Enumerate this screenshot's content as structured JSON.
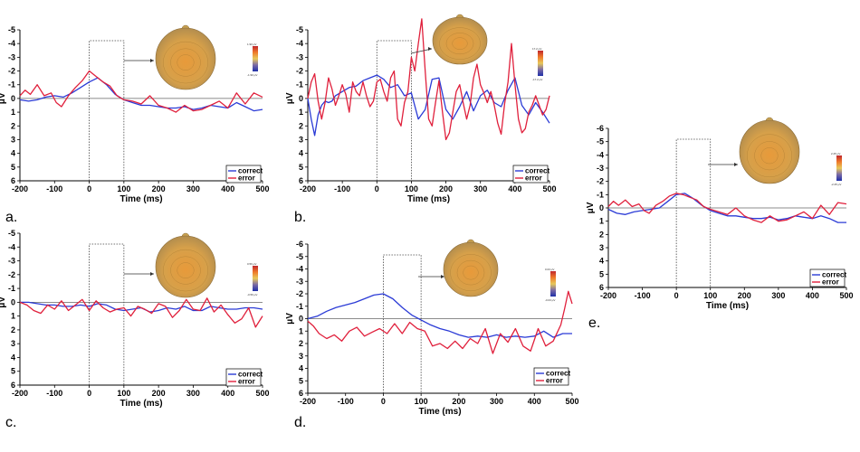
{
  "chart_data": [
    {
      "panel": "a.",
      "type": "line",
      "xlabel": "Time (ms)",
      "ylabel": "μV",
      "xlim": [
        -200,
        500
      ],
      "ylim": [
        -5,
        6
      ],
      "xticks": [
        -200,
        -100,
        0,
        100,
        200,
        300,
        400,
        500
      ],
      "yticks": [
        -5,
        -4,
        -3,
        -2,
        -1,
        0,
        1,
        2,
        3,
        4,
        5,
        6
      ],
      "legend": [
        "correct",
        "error"
      ],
      "colorbar": [
        "1.90 μV",
        "-1.90 μV"
      ],
      "series": [
        {
          "name": "correct",
          "color": "#2b3bd6",
          "x": [
            -200,
            -175,
            -150,
            -125,
            -100,
            -75,
            -50,
            -25,
            0,
            25,
            50,
            75,
            100,
            125,
            150,
            175,
            200,
            225,
            250,
            275,
            300,
            325,
            350,
            375,
            400,
            425,
            450,
            475,
            500
          ],
          "y": [
            0.1,
            0.2,
            0.1,
            -0.1,
            -0.2,
            -0.1,
            -0.4,
            -0.8,
            -1.2,
            -1.5,
            -1.0,
            -0.3,
            0.1,
            0.3,
            0.5,
            0.5,
            0.6,
            0.7,
            0.7,
            0.6,
            0.8,
            0.7,
            0.5,
            0.6,
            0.7,
            0.3,
            0.6,
            0.9,
            0.8
          ]
        },
        {
          "name": "error",
          "color": "#e0203c",
          "x": [
            -200,
            -185,
            -170,
            -150,
            -130,
            -110,
            -95,
            -80,
            -60,
            -40,
            -20,
            0,
            20,
            40,
            60,
            80,
            100,
            125,
            150,
            175,
            200,
            225,
            250,
            275,
            300,
            325,
            350,
            375,
            400,
            425,
            450,
            475,
            500
          ],
          "y": [
            -0.2,
            -0.6,
            -0.3,
            -1.0,
            -0.2,
            -0.4,
            0.3,
            0.6,
            -0.2,
            -0.8,
            -1.3,
            -2.0,
            -1.6,
            -1.2,
            -0.9,
            -0.2,
            0.1,
            0.2,
            0.4,
            -0.2,
            0.5,
            0.7,
            1.0,
            0.5,
            0.9,
            0.8,
            0.5,
            0.2,
            0.7,
            -0.4,
            0.4,
            -0.4,
            -0.1
          ]
        }
      ]
    },
    {
      "panel": "b.",
      "type": "line",
      "xlabel": "Time (ms)",
      "ylabel": "μV",
      "xlim": [
        -200,
        500
      ],
      "ylim": [
        -5,
        6
      ],
      "xticks": [
        -200,
        -100,
        0,
        100,
        200,
        300,
        400,
        500
      ],
      "yticks": [
        -5,
        -4,
        -3,
        -2,
        -1,
        0,
        1,
        2,
        3,
        4,
        5,
        6
      ],
      "legend": [
        "correct",
        "error"
      ],
      "colorbar": [
        "17.2 μV",
        "-17.2 μV"
      ],
      "series": [
        {
          "name": "correct",
          "color": "#2b3bd6",
          "x": [
            -200,
            -190,
            -180,
            -170,
            -160,
            -150,
            -140,
            -130,
            -120,
            -100,
            -80,
            -60,
            -40,
            -20,
            0,
            20,
            40,
            60,
            80,
            100,
            120,
            140,
            160,
            180,
            200,
            220,
            240,
            260,
            280,
            300,
            320,
            340,
            360,
            380,
            400,
            420,
            440,
            460,
            480,
            500
          ],
          "y": [
            0,
            1.5,
            2.7,
            1.2,
            0.5,
            0.2,
            0.3,
            0.2,
            -0.2,
            -0.5,
            -0.8,
            -0.9,
            -1.3,
            -1.5,
            -1.7,
            -1.4,
            -0.8,
            -1.0,
            -0.2,
            -0.4,
            1.5,
            0.8,
            -1.4,
            -1.5,
            0.8,
            1.5,
            0.6,
            -0.5,
            0.9,
            -0.2,
            -0.6,
            0.3,
            0.6,
            -0.6,
            -1.5,
            0.5,
            1.2,
            0.3,
            1.0,
            1.8
          ]
        },
        {
          "name": "error",
          "color": "#e0203c",
          "x": [
            -200,
            -190,
            -180,
            -170,
            -160,
            -150,
            -140,
            -130,
            -120,
            -110,
            -100,
            -90,
            -80,
            -70,
            -60,
            -50,
            -40,
            -30,
            -20,
            -10,
            0,
            10,
            20,
            30,
            40,
            50,
            60,
            70,
            80,
            90,
            100,
            110,
            120,
            130,
            140,
            150,
            160,
            170,
            180,
            190,
            200,
            210,
            220,
            230,
            240,
            250,
            260,
            270,
            280,
            290,
            300,
            310,
            320,
            330,
            340,
            350,
            360,
            370,
            380,
            390,
            400,
            410,
            420,
            430,
            440,
            450,
            460,
            470,
            480,
            490,
            500
          ],
          "y": [
            0,
            -1.2,
            -1.8,
            0.2,
            1.5,
            0.3,
            -1.5,
            -0.7,
            0.5,
            -0.2,
            -1.0,
            -0.3,
            1.0,
            -1.2,
            -0.5,
            -0.2,
            -1.2,
            -0.2,
            0.6,
            0.2,
            -1.2,
            -1.4,
            -0.5,
            0.2,
            -1.5,
            -2.0,
            1.5,
            2.0,
            0.3,
            -0.5,
            -3.0,
            -2.0,
            -4.0,
            -5.8,
            -2.0,
            1.5,
            2.0,
            0.3,
            -1.3,
            1.0,
            3.0,
            2.5,
            1.0,
            -0.5,
            -1.0,
            0.3,
            1.5,
            0.5,
            -1.5,
            -2.5,
            -1.0,
            -0.4,
            0.3,
            -0.5,
            0.5,
            1.8,
            2.6,
            0.4,
            -1.2,
            -4.0,
            -1.0,
            1.5,
            2.5,
            2.2,
            1.0,
            0.5,
            -0.2,
            0.5,
            1.2,
            0.8,
            -0.2
          ]
        }
      ]
    },
    {
      "panel": "c.",
      "type": "line",
      "xlabel": "Time (ms)",
      "ylabel": "μV",
      "xlim": [
        -200,
        500
      ],
      "ylim": [
        -5,
        6
      ],
      "xticks": [
        -200,
        -100,
        0,
        100,
        200,
        300,
        400,
        500
      ],
      "yticks": [
        -5,
        -4,
        -3,
        -2,
        -1,
        0,
        1,
        2,
        3,
        4,
        5,
        6
      ],
      "legend": [
        "correct",
        "error"
      ],
      "colorbar": [
        "0.56 μV",
        "-0.56 μV"
      ],
      "series": [
        {
          "name": "correct",
          "color": "#2b3bd6",
          "x": [
            -200,
            -175,
            -150,
            -125,
            -100,
            -75,
            -50,
            -25,
            0,
            25,
            50,
            75,
            100,
            125,
            150,
            175,
            200,
            225,
            250,
            275,
            300,
            325,
            350,
            375,
            400,
            425,
            450,
            475,
            500
          ],
          "y": [
            0,
            0,
            0.1,
            0.2,
            0.2,
            0.3,
            0.3,
            0.2,
            0.3,
            0.1,
            0.2,
            0.5,
            0.6,
            0.5,
            0.4,
            0.7,
            0.6,
            0.4,
            0.5,
            0.3,
            0.6,
            0.6,
            0.3,
            0.4,
            0.5,
            0.5,
            0.4,
            0.4,
            0.5
          ]
        },
        {
          "name": "error",
          "color": "#e0203c",
          "x": [
            -200,
            -180,
            -160,
            -140,
            -120,
            -100,
            -80,
            -60,
            -40,
            -20,
            0,
            20,
            40,
            60,
            80,
            100,
            120,
            140,
            160,
            180,
            200,
            220,
            240,
            260,
            280,
            300,
            320,
            340,
            360,
            380,
            400,
            420,
            440,
            460,
            480,
            500
          ],
          "y": [
            0,
            0.2,
            0.6,
            0.8,
            0.2,
            0.5,
            -0.1,
            0.6,
            0.2,
            -0.2,
            0.6,
            -0.1,
            0.4,
            0.7,
            0.5,
            0.4,
            1.0,
            0.3,
            0.5,
            0.8,
            0.1,
            0.3,
            1.1,
            0.6,
            -0.2,
            0.5,
            0.6,
            -0.3,
            0.7,
            0.2,
            0.9,
            1.5,
            1.2,
            0.4,
            1.8,
            1.0
          ]
        }
      ]
    },
    {
      "panel": "d.",
      "type": "line",
      "xlabel": "Time (ms)",
      "ylabel": "μV",
      "xlim": [
        -200,
        500
      ],
      "ylim": [
        -6,
        6
      ],
      "xticks": [
        -200,
        -100,
        0,
        100,
        200,
        300,
        400,
        500
      ],
      "yticks": [
        -6,
        -5,
        -4,
        -3,
        -2,
        -1,
        0,
        1,
        2,
        3,
        4,
        5,
        6
      ],
      "legend": [
        "correct",
        "error"
      ],
      "colorbar": [
        "0.03 μV",
        "-0.03 μV"
      ],
      "series": [
        {
          "name": "correct",
          "color": "#2b3bd6",
          "x": [
            -200,
            -175,
            -150,
            -125,
            -100,
            -75,
            -50,
            -25,
            0,
            25,
            50,
            75,
            100,
            125,
            150,
            175,
            200,
            225,
            250,
            275,
            300,
            325,
            350,
            375,
            400,
            425,
            450,
            475,
            500
          ],
          "y": [
            0,
            -0.2,
            -0.6,
            -0.9,
            -1.1,
            -1.3,
            -1.6,
            -1.9,
            -2.0,
            -1.6,
            -0.9,
            -0.3,
            0.1,
            0.5,
            0.8,
            1.0,
            1.3,
            1.5,
            1.4,
            1.5,
            1.3,
            1.5,
            1.4,
            1.5,
            1.4,
            1.0,
            1.5,
            1.2,
            1.2
          ]
        },
        {
          "name": "error",
          "color": "#e0203c",
          "x": [
            -200,
            -185,
            -170,
            -150,
            -130,
            -110,
            -90,
            -70,
            -50,
            -30,
            -10,
            10,
            30,
            50,
            70,
            90,
            110,
            130,
            150,
            170,
            190,
            210,
            230,
            250,
            270,
            290,
            310,
            330,
            350,
            370,
            390,
            410,
            430,
            450,
            470,
            480,
            490,
            500
          ],
          "y": [
            0.2,
            0.6,
            1.2,
            1.6,
            1.3,
            1.8,
            1.0,
            0.7,
            1.4,
            1.1,
            0.8,
            1.2,
            0.4,
            1.2,
            0.3,
            0.8,
            1.0,
            2.2,
            2.0,
            2.4,
            1.8,
            2.4,
            1.6,
            2.0,
            0.8,
            2.8,
            1.2,
            1.9,
            0.8,
            2.2,
            2.6,
            0.8,
            2.2,
            1.8,
            0.5,
            -0.8,
            -2.2,
            -1.2
          ]
        }
      ]
    },
    {
      "panel": "e.",
      "type": "line",
      "xlabel": "Time (ms)",
      "ylabel": "μV",
      "xlim": [
        -200,
        500
      ],
      "ylim": [
        -6,
        6
      ],
      "xticks": [
        -200,
        -100,
        0,
        100,
        200,
        300,
        400,
        500
      ],
      "yticks": [
        -6,
        -5,
        -4,
        -3,
        -2,
        -1,
        0,
        1,
        2,
        3,
        4,
        5,
        6
      ],
      "legend": [
        "correct",
        "error"
      ],
      "colorbar": [
        "2.25 μV",
        "-2.25 μV"
      ],
      "series": [
        {
          "name": "correct",
          "color": "#2b3bd6",
          "x": [
            -200,
            -175,
            -150,
            -125,
            -100,
            -75,
            -50,
            -25,
            0,
            25,
            50,
            75,
            100,
            125,
            150,
            175,
            200,
            225,
            250,
            275,
            300,
            325,
            350,
            375,
            400,
            425,
            450,
            475,
            500
          ],
          "y": [
            0.1,
            0.4,
            0.5,
            0.3,
            0.2,
            0.1,
            0,
            -0.5,
            -1.0,
            -1.1,
            -0.7,
            -0.2,
            0.2,
            0.4,
            0.6,
            0.6,
            0.7,
            0.8,
            0.8,
            0.7,
            0.9,
            0.8,
            0.6,
            0.7,
            0.8,
            0.6,
            0.8,
            1.1,
            1.1
          ]
        },
        {
          "name": "error",
          "color": "#e0203c",
          "x": [
            -200,
            -185,
            -170,
            -150,
            -130,
            -110,
            -95,
            -80,
            -60,
            -40,
            -20,
            0,
            20,
            40,
            60,
            80,
            100,
            125,
            150,
            175,
            200,
            225,
            250,
            275,
            300,
            325,
            350,
            375,
            400,
            425,
            450,
            475,
            500
          ],
          "y": [
            -0.1,
            -0.5,
            -0.2,
            -0.6,
            -0.1,
            -0.3,
            0.2,
            0.4,
            -0.2,
            -0.5,
            -0.9,
            -1.1,
            -1.0,
            -0.8,
            -0.6,
            -0.1,
            0.1,
            0.3,
            0.5,
            0.0,
            0.6,
            0.9,
            1.1,
            0.6,
            1.0,
            0.9,
            0.6,
            0.3,
            0.8,
            -0.2,
            0.5,
            -0.4,
            -0.3
          ]
        }
      ]
    }
  ]
}
